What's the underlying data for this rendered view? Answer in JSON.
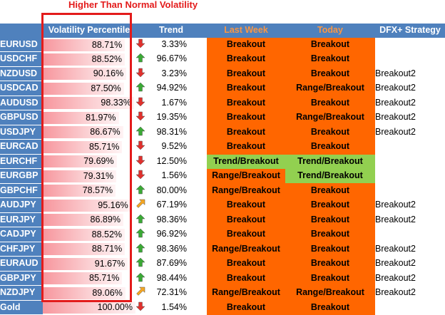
{
  "annotation": "Higher Than Normal Volatility",
  "colors": {
    "header_blue": "#4f81bd",
    "orange": "#ff6600",
    "green": "#92d050",
    "highlight_red": "#e31b1b"
  },
  "headers": {
    "pair": "",
    "volatility": "Volatility Percentile",
    "trend": "Trend",
    "last_week": "Last Week",
    "today": "Today",
    "dfx": "DFX+ Strategy"
  },
  "rows": [
    {
      "pair": "EURUSD",
      "vol": "88.71%",
      "vol_pct": 88.71,
      "arrow": "down",
      "trend": "3.33%",
      "last_week": "Breakout",
      "lw_color": "orange",
      "today": "Breakout",
      "td_color": "orange",
      "dfx": ""
    },
    {
      "pair": "USDCHF",
      "vol": "88.52%",
      "vol_pct": 88.52,
      "arrow": "up",
      "trend": "96.67%",
      "last_week": "Breakout",
      "lw_color": "orange",
      "today": "Breakout",
      "td_color": "orange",
      "dfx": ""
    },
    {
      "pair": "NZDUSD",
      "vol": "90.16%",
      "vol_pct": 90.16,
      "arrow": "down",
      "trend": "3.23%",
      "last_week": "Breakout",
      "lw_color": "orange",
      "today": "Breakout",
      "td_color": "orange",
      "dfx": "Breakout2"
    },
    {
      "pair": "USDCAD",
      "vol": "87.50%",
      "vol_pct": 87.5,
      "arrow": "up",
      "trend": "94.92%",
      "last_week": "Breakout",
      "lw_color": "orange",
      "today": "Range/Breakout",
      "td_color": "orange",
      "dfx": "Breakout2"
    },
    {
      "pair": "AUDUSD",
      "vol": "98.33%",
      "vol_pct": 98.33,
      "arrow": "down",
      "trend": "1.67%",
      "last_week": "Breakout",
      "lw_color": "orange",
      "today": "Breakout",
      "td_color": "orange",
      "dfx": "Breakout2"
    },
    {
      "pair": "GBPUSD",
      "vol": "81.97%",
      "vol_pct": 81.97,
      "arrow": "down",
      "trend": "19.35%",
      "last_week": "Breakout",
      "lw_color": "orange",
      "today": "Range/Breakout",
      "td_color": "orange",
      "dfx": "Breakout2"
    },
    {
      "pair": "USDJPY",
      "vol": "86.67%",
      "vol_pct": 86.67,
      "arrow": "up",
      "trend": "98.31%",
      "last_week": "Breakout",
      "lw_color": "orange",
      "today": "Breakout",
      "td_color": "orange",
      "dfx": "Breakout2"
    },
    {
      "pair": "EURCAD",
      "vol": "85.71%",
      "vol_pct": 85.71,
      "arrow": "down",
      "trend": "9.52%",
      "last_week": "Breakout",
      "lw_color": "orange",
      "today": "Breakout",
      "td_color": "orange",
      "dfx": ""
    },
    {
      "pair": "EURCHF",
      "vol": "79.69%",
      "vol_pct": 79.69,
      "arrow": "down",
      "trend": "12.50%",
      "last_week": "Trend/Breakout",
      "lw_color": "green",
      "today": "Trend/Breakout",
      "td_color": "green",
      "dfx": ""
    },
    {
      "pair": "EURGBP",
      "vol": "79.31%",
      "vol_pct": 79.31,
      "arrow": "down",
      "trend": "1.56%",
      "last_week": "Range/Breakout",
      "lw_color": "orange",
      "today": "Trend/Breakout",
      "td_color": "green",
      "dfx": ""
    },
    {
      "pair": "GBPCHF",
      "vol": "78.57%",
      "vol_pct": 78.57,
      "arrow": "up",
      "trend": "80.00%",
      "last_week": "Range/Breakout",
      "lw_color": "orange",
      "today": "Breakout",
      "td_color": "orange",
      "dfx": ""
    },
    {
      "pair": "AUDJPY",
      "vol": "95.16%",
      "vol_pct": 95.16,
      "arrow": "diag",
      "trend": "67.19%",
      "last_week": "Breakout",
      "lw_color": "orange",
      "today": "Breakout",
      "td_color": "orange",
      "dfx": "Breakout2"
    },
    {
      "pair": "EURJPY",
      "vol": "86.89%",
      "vol_pct": 86.89,
      "arrow": "up",
      "trend": "98.36%",
      "last_week": "Breakout",
      "lw_color": "orange",
      "today": "Breakout",
      "td_color": "orange",
      "dfx": "Breakout2"
    },
    {
      "pair": "CADJPY",
      "vol": "88.52%",
      "vol_pct": 88.52,
      "arrow": "up",
      "trend": "96.92%",
      "last_week": "Breakout",
      "lw_color": "orange",
      "today": "Breakout",
      "td_color": "orange",
      "dfx": ""
    },
    {
      "pair": "CHFJPY",
      "vol": "88.71%",
      "vol_pct": 88.71,
      "arrow": "up",
      "trend": "98.36%",
      "last_week": "Range/Breakout",
      "lw_color": "orange",
      "today": "Breakout",
      "td_color": "orange",
      "dfx": "Breakout2"
    },
    {
      "pair": "EURAUD",
      "vol": "91.67%",
      "vol_pct": 91.67,
      "arrow": "up",
      "trend": "87.69%",
      "last_week": "Breakout",
      "lw_color": "orange",
      "today": "Breakout",
      "td_color": "orange",
      "dfx": "Breakout2"
    },
    {
      "pair": "GBPJPY",
      "vol": "85.71%",
      "vol_pct": 85.71,
      "arrow": "up",
      "trend": "98.44%",
      "last_week": "Breakout",
      "lw_color": "orange",
      "today": "Breakout",
      "td_color": "orange",
      "dfx": "Breakout2"
    },
    {
      "pair": "NZDJPY",
      "vol": "89.06%",
      "vol_pct": 89.06,
      "arrow": "diag",
      "trend": "72.31%",
      "last_week": "Range/Breakout",
      "lw_color": "orange",
      "today": "Range/Breakout",
      "td_color": "orange",
      "dfx": "Breakout2"
    },
    {
      "pair": "Gold",
      "vol": "100.00%",
      "vol_pct": 100,
      "arrow": "down",
      "trend": "1.54%",
      "last_week": "Breakout",
      "lw_color": "orange",
      "today": "Breakout",
      "td_color": "orange",
      "dfx": ""
    }
  ]
}
